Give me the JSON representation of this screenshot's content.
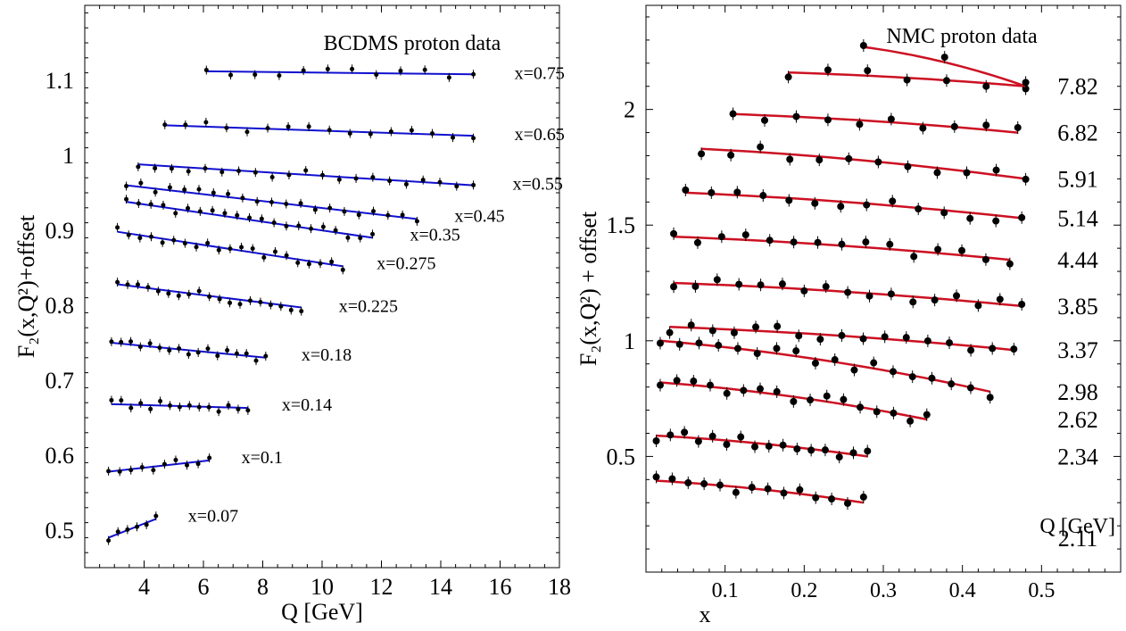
{
  "chart_data": [
    {
      "type": "scatter",
      "title": "BCDMS proton data",
      "xlabel": "Q [GeV]",
      "ylabel": "F₂(x,Q²)+offset",
      "xlim": [
        2,
        18
      ],
      "ylim": [
        0.45,
        1.2
      ],
      "xticks": [
        4,
        6,
        8,
        10,
        12,
        14,
        16,
        18
      ],
      "yticks": [
        0.5,
        0.6,
        0.7,
        0.8,
        0.9,
        1.0,
        1.1
      ],
      "ytick_labels": [
        "0.5",
        "0.6",
        "0.7",
        "0.8",
        "0.9",
        "1",
        "1.1"
      ],
      "grid": false,
      "colors": {
        "fit": "#1010d0",
        "points": "#000000"
      },
      "series": [
        {
          "label": "x=0.07",
          "qmin": 2.8,
          "qmax": 4.4,
          "y0": 0.49,
          "y1": 0.515,
          "n": 6
        },
        {
          "label": "x=0.1",
          "qmin": 2.8,
          "qmax": 6.2,
          "y0": 0.578,
          "y1": 0.593,
          "n": 10
        },
        {
          "label": "x=0.14",
          "qmin": 2.9,
          "qmax": 7.5,
          "y0": 0.668,
          "y1": 0.663,
          "n": 15
        },
        {
          "label": "x=0.18",
          "qmin": 2.9,
          "qmax": 8.1,
          "y0": 0.75,
          "y1": 0.73,
          "n": 17
        },
        {
          "label": "x=0.225",
          "qmin": 3.1,
          "qmax": 9.3,
          "y0": 0.828,
          "y1": 0.797,
          "n": 19
        },
        {
          "label": "x=0.275",
          "qmin": 3.1,
          "qmax": 10.7,
          "y0": 0.898,
          "y1": 0.852,
          "n": 21
        },
        {
          "label": "x=0.35",
          "qmin": 3.4,
          "qmax": 11.7,
          "y0": 0.938,
          "y1": 0.89,
          "n": 21
        },
        {
          "label": "x=0.45",
          "qmin": 3.4,
          "qmax": 13.2,
          "y0": 0.96,
          "y1": 0.915,
          "n": 21
        },
        {
          "label": "x=0.55",
          "qmin": 3.8,
          "qmax": 15.1,
          "y0": 0.988,
          "y1": 0.96,
          "n": 21
        },
        {
          "label": "x=0.65",
          "qmin": 4.7,
          "qmax": 15.1,
          "y0": 1.04,
          "y1": 1.026,
          "n": 16
        },
        {
          "label": "x=0.75",
          "qmin": 6.1,
          "qmax": 15.1,
          "y0": 1.112,
          "y1": 1.108,
          "n": 12
        }
      ]
    },
    {
      "type": "scatter",
      "title": "NMC proton  data",
      "xlabel": "x",
      "ylabel": "F₂(x,Q²) + offset",
      "legend_title": "Q [GeV]",
      "xlim": [
        0,
        0.6
      ],
      "ylim": [
        0.0,
        2.45
      ],
      "xticks": [
        0.1,
        0.2,
        0.3,
        0.4,
        0.5
      ],
      "yticks": [
        0.5,
        1.0,
        1.5,
        2.0
      ],
      "ytick_labels": [
        "0.5",
        "1",
        "1.5",
        "2"
      ],
      "grid": false,
      "colors": {
        "fit": "#cc1122",
        "points": "#000000"
      },
      "series": [
        {
          "label": "2.11",
          "xmin": 0.013,
          "xmax": 0.275,
          "y0": 0.395,
          "y1": 0.3,
          "n": 14
        },
        {
          "label": "2.34",
          "xmin": 0.013,
          "xmax": 0.28,
          "y0": 0.59,
          "y1": 0.5,
          "n": 16
        },
        {
          "label": "2.62",
          "xmin": 0.018,
          "xmax": 0.355,
          "y0": 0.82,
          "y1": 0.66,
          "n": 17
        },
        {
          "label": "2.98",
          "xmin": 0.018,
          "xmax": 0.435,
          "y0": 1.0,
          "y1": 0.78,
          "n": 18
        },
        {
          "label": "3.37",
          "xmin": 0.03,
          "xmax": 0.465,
          "y0": 1.06,
          "y1": 0.96,
          "n": 17
        },
        {
          "label": "3.85",
          "xmin": 0.035,
          "xmax": 0.475,
          "y0": 1.25,
          "y1": 1.15,
          "n": 17
        },
        {
          "label": "4.44",
          "xmin": 0.035,
          "xmax": 0.46,
          "y0": 1.45,
          "y1": 1.35,
          "n": 15
        },
        {
          "label": "5.14",
          "xmin": 0.05,
          "xmax": 0.475,
          "y0": 1.64,
          "y1": 1.53,
          "n": 14
        },
        {
          "label": "5.91",
          "xmin": 0.07,
          "xmax": 0.48,
          "y0": 1.83,
          "y1": 1.7,
          "n": 12
        },
        {
          "label": "6.82",
          "xmin": 0.11,
          "xmax": 0.47,
          "y0": 1.98,
          "y1": 1.9,
          "n": 10
        },
        {
          "label": "7.82",
          "xmin": 0.18,
          "xmax": 0.48,
          "y0": 2.16,
          "y1": 2.1,
          "n": 7
        },
        {
          "label": "",
          "xmin": 0.275,
          "xmax": 0.48,
          "y0": 2.27,
          "y1": 2.1,
          "n": 3
        }
      ]
    }
  ]
}
